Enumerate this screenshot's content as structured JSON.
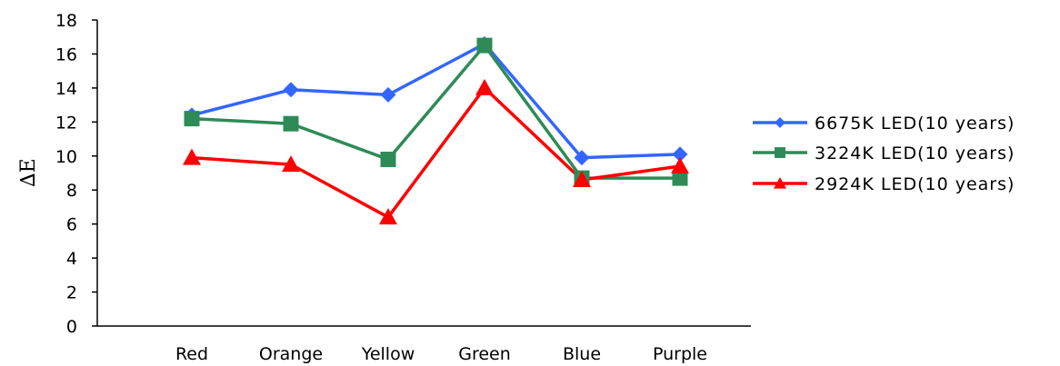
{
  "chart_data": {
    "type": "line",
    "categories": [
      "Red",
      "Orange",
      "Yellow",
      "Green",
      "Blue",
      "Purple"
    ],
    "ylabel": "∆E",
    "ylim": [
      0,
      18
    ],
    "yticks": [
      0,
      2,
      4,
      6,
      8,
      10,
      12,
      14,
      16,
      18
    ],
    "grid": false,
    "legend_position": "right",
    "series": [
      {
        "name": "6675K LED(10 years)",
        "color": "#3366ff",
        "marker": "diamond",
        "values": [
          12.4,
          13.9,
          13.6,
          16.6,
          9.9,
          10.1
        ]
      },
      {
        "name": "3224K LED(10 years)",
        "color": "#2e8b57",
        "marker": "square",
        "values": [
          12.2,
          11.9,
          9.8,
          16.5,
          8.7,
          8.7
        ]
      },
      {
        "name": "2924K LED(10 years)",
        "color": "#ff0000",
        "marker": "triangle",
        "values": [
          9.9,
          9.5,
          6.4,
          14.0,
          8.6,
          9.4
        ]
      }
    ]
  }
}
